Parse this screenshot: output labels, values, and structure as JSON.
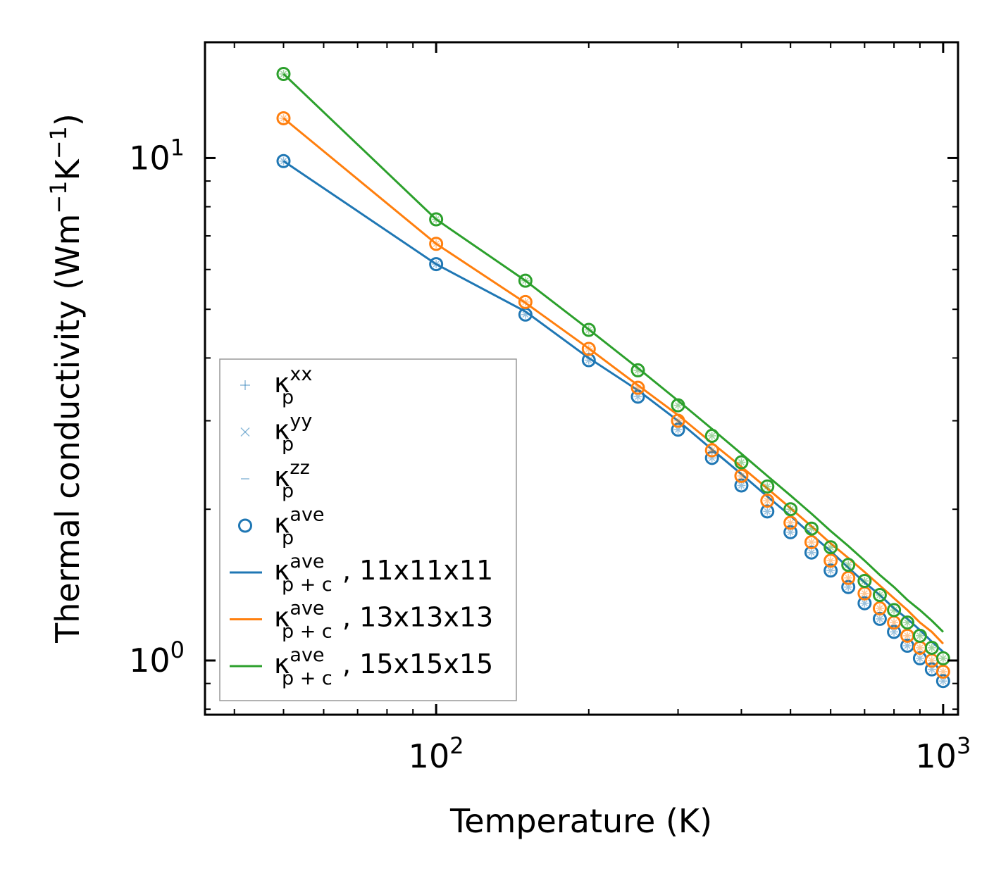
{
  "chart_data": {
    "type": "line",
    "title": "",
    "xlabel": "Temperature (K)",
    "ylabel": "Thermal conductivity (Wm$^{-1}$K$^{-1}$)",
    "ylabel_parts": {
      "base": "Thermal conductivity (Wm",
      "exp1": "−1",
      "mid": "K",
      "exp2": "−1",
      "end": ")"
    },
    "xscale": "log",
    "yscale": "log",
    "xlim": [
      35,
      1070
    ],
    "ylim": [
      0.78,
      17
    ],
    "xticks": [
      {
        "value": 100,
        "base": "10",
        "exp": "2"
      },
      {
        "value": 1000,
        "base": "10",
        "exp": "3"
      }
    ],
    "yticks": [
      {
        "value": 1,
        "base": "10",
        "exp": "0"
      },
      {
        "value": 10,
        "base": "10",
        "exp": "1"
      }
    ],
    "x": [
      50,
      100,
      150,
      200,
      250,
      300,
      350,
      400,
      450,
      500,
      550,
      600,
      650,
      700,
      750,
      800,
      850,
      900,
      950,
      1000
    ],
    "series": [
      {
        "name": "11x11x11",
        "color": "#1f77b4",
        "points": [
          9.86,
          6.15,
          4.88,
          3.96,
          3.35,
          2.88,
          2.53,
          2.23,
          1.98,
          1.8,
          1.64,
          1.51,
          1.4,
          1.3,
          1.21,
          1.14,
          1.07,
          1.01,
          0.96,
          0.91
        ],
        "line": [
          9.86,
          6.15,
          4.95,
          4.0,
          3.45,
          3.0,
          2.63,
          2.35,
          2.12,
          1.94,
          1.78,
          1.65,
          1.53,
          1.43,
          1.35,
          1.27,
          1.21,
          1.15,
          1.09,
          1.04
        ]
      },
      {
        "name": "13x13x13",
        "color": "#ff7f0e",
        "points": [
          12.0,
          6.75,
          5.17,
          4.17,
          3.49,
          3.0,
          2.62,
          2.33,
          2.08,
          1.88,
          1.72,
          1.58,
          1.46,
          1.36,
          1.27,
          1.19,
          1.12,
          1.06,
          1.0,
          0.95
        ],
        "line": [
          12.0,
          6.75,
          5.15,
          4.18,
          3.53,
          3.08,
          2.71,
          2.43,
          2.2,
          2.01,
          1.85,
          1.71,
          1.6,
          1.5,
          1.41,
          1.33,
          1.26,
          1.19,
          1.14,
          1.08
        ]
      },
      {
        "name": "15x15x15",
        "color": "#2ca02c",
        "points": [
          14.7,
          7.55,
          5.7,
          4.55,
          3.78,
          3.22,
          2.8,
          2.48,
          2.22,
          2.0,
          1.83,
          1.68,
          1.55,
          1.44,
          1.35,
          1.26,
          1.19,
          1.12,
          1.06,
          1.01
        ],
        "line": [
          14.7,
          7.55,
          5.7,
          4.56,
          3.82,
          3.29,
          2.89,
          2.58,
          2.33,
          2.13,
          1.96,
          1.81,
          1.69,
          1.58,
          1.48,
          1.4,
          1.32,
          1.26,
          1.2,
          1.14
        ]
      }
    ],
    "legend": {
      "placement": "lower-left",
      "entries": [
        {
          "marker": "plus",
          "base": "κ",
          "sup": "xx",
          "sub": "p",
          "tail": "",
          "color": "#1f77b4"
        },
        {
          "marker": "x",
          "base": "κ",
          "sup": "yy",
          "sub": "p",
          "tail": "",
          "color": "#1f77b4"
        },
        {
          "marker": "dash",
          "base": "κ",
          "sup": "zz",
          "sub": "p",
          "tail": "",
          "color": "#1f77b4"
        },
        {
          "marker": "circle",
          "base": "κ",
          "sup": "ave",
          "sub": "p",
          "tail": "",
          "color": "#1f77b4"
        },
        {
          "marker": "line",
          "base": "κ",
          "sup": "ave",
          "sub": "p + c",
          "tail": ", 11x11x11",
          "color": "#1f77b4"
        },
        {
          "marker": "line",
          "base": "κ",
          "sup": "ave",
          "sub": "p + c",
          "tail": ", 13x13x13",
          "color": "#ff7f0e"
        },
        {
          "marker": "line",
          "base": "κ",
          "sup": "ave",
          "sub": "p + c",
          "tail": ", 15x15x15",
          "color": "#2ca02c"
        }
      ]
    }
  }
}
